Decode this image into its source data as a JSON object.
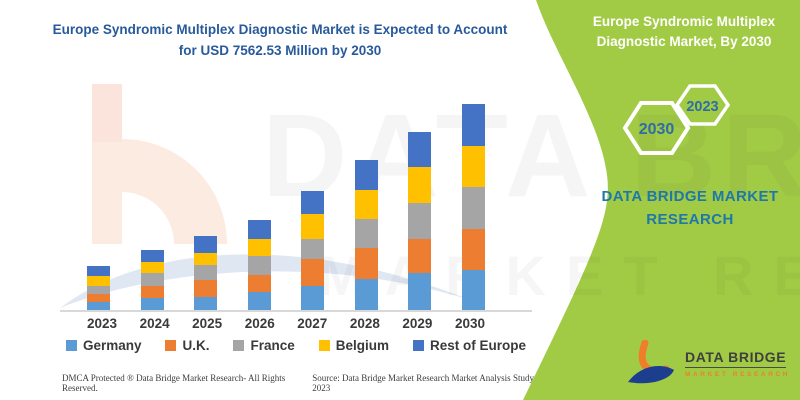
{
  "chart_data": {
    "type": "bar",
    "stacked": true,
    "title": "Europe Syndromic Multiplex Diagnostic Market is Expected to Account for USD 7562.53 Million by 2030",
    "unit": "USD Million",
    "categories": [
      "2023",
      "2024",
      "2025",
      "2026",
      "2027",
      "2028",
      "2029",
      "2030"
    ],
    "series": [
      {
        "name": "Germany",
        "color": "#5B9BD5",
        "values": [
          304,
          428,
          487,
          648,
          889,
          1135,
          1340,
          1475
        ]
      },
      {
        "name": "U.K.",
        "color": "#ED7D31",
        "values": [
          304,
          428,
          611,
          633,
          1003,
          1124,
          1233,
          1512
        ]
      },
      {
        "name": "France",
        "color": "#A5A5A5",
        "values": [
          304,
          487,
          549,
          684,
          732,
          1050,
          1307,
          1537
        ]
      },
      {
        "name": "Belgium",
        "color": "#FFC000",
        "values": [
          366,
          392,
          450,
          633,
          915,
          1061,
          1303,
          1515
        ]
      },
      {
        "name": "Rest of Europe",
        "color": "#4472C4",
        "values": [
          366,
          428,
          608,
          695,
          853,
          1098,
          1295,
          1523.53
        ]
      }
    ],
    "totals": [
      1644,
      2163,
      2705,
      3293,
      4392,
      5468,
      6478,
      7562.53
    ],
    "value_axis_visible": false,
    "grid": false,
    "legend_position": "bottom"
  },
  "side_panel": {
    "heading": "Europe Syndromic Multiplex Diagnostic Market, By 2030",
    "hexagon_large_label": "2030",
    "hexagon_small_label": "2023",
    "brand_text": "DATA BRIDGE MARKET RESEARCH",
    "background_color": "#a2cb45",
    "year_text_color": "#2e6da6"
  },
  "watermark": {
    "line1": "DATA BRIDGE",
    "line2": "MARKET RESEARCH"
  },
  "logo": {
    "name": "DATA BRIDGE",
    "tagline": "MARKET RESEARCH"
  },
  "footer": {
    "left": "DMCA Protected ® Data Bridge Market Research- All Rights Reserved.",
    "right": "Source: Data Bridge Market Research  Market Analysis Study 2023"
  }
}
